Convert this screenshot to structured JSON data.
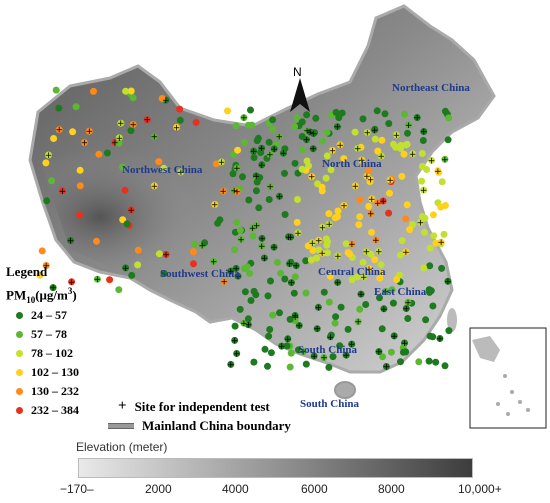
{
  "map": {
    "regions": [
      {
        "label": "Northeast China"
      },
      {
        "label": "North China"
      },
      {
        "label": "Northwest China"
      },
      {
        "label": "Southwest China"
      },
      {
        "label": "Central China"
      },
      {
        "label": "East China"
      },
      {
        "label": "South China"
      },
      {
        "label": "South China"
      }
    ],
    "north_arrow": "N"
  },
  "legend": {
    "title": "Legend",
    "pm_label": "PM",
    "pm_sub": "10",
    "pm_units": "(μg/m",
    "pm_sup": "3",
    "pm_close": ")",
    "classes": [
      {
        "range": "24 – 57",
        "color": "#1e7a1e"
      },
      {
        "range": "57 – 78",
        "color": "#5cb832"
      },
      {
        "range": "78 – 102",
        "color": "#c2e030"
      },
      {
        "range": "102 – 130",
        "color": "#ffd11a"
      },
      {
        "range": "130 – 232",
        "color": "#ff8a1a"
      },
      {
        "range": "232 – 384",
        "color": "#e5321e"
      }
    ],
    "site_label": "Site for independent test",
    "boundary_label": "Mainland China boundary"
  },
  "elevation": {
    "title": "Elevation (meter)",
    "ticks": [
      "−170–",
      "2000",
      "4000",
      "6000",
      "8000",
      "10,000+"
    ]
  }
}
